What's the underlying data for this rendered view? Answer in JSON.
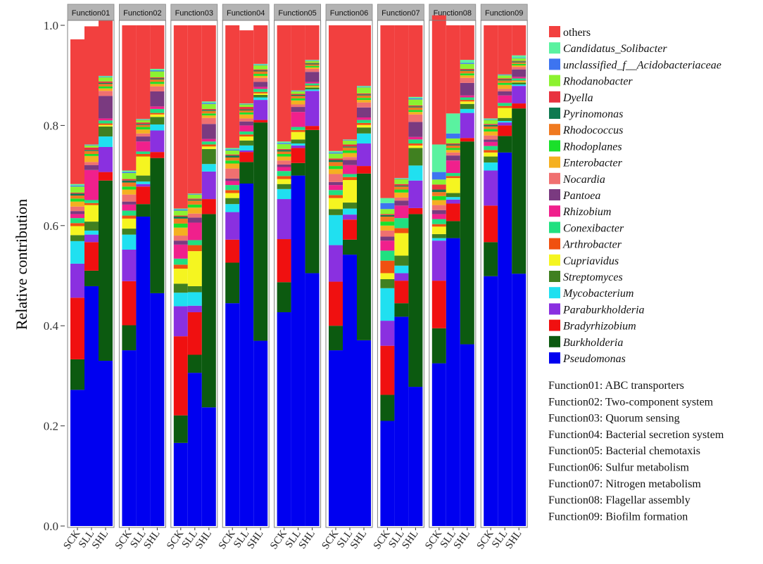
{
  "chart_data": {
    "type": "bar",
    "stacked": true,
    "ylabel": "Relative contribution",
    "ylim": [
      0,
      1.0
    ],
    "yticks": [
      "0.0",
      "0.2",
      "0.4",
      "0.6",
      "0.8",
      "1.0"
    ],
    "facets": [
      "Function01",
      "Function02",
      "Function03",
      "Function04",
      "Function05",
      "Function06",
      "Function07",
      "Function08",
      "Function09"
    ],
    "samples": [
      "SCK",
      "SLL",
      "SHL"
    ],
    "legend_title": "",
    "legend": [
      {
        "name": "others",
        "color": "#F2403F",
        "italic": false
      },
      {
        "name": "Candidatus_Solibacter",
        "color": "#5AF2A0",
        "italic": true
      },
      {
        "name": "unclassified_f__Acidobacteriaceae",
        "color": "#3D74F0",
        "italic": true
      },
      {
        "name": "Rhodanobacter",
        "color": "#8CF230",
        "italic": true
      },
      {
        "name": "Dyella",
        "color": "#E8323F",
        "italic": true
      },
      {
        "name": "Pyrinomonas",
        "color": "#0E7A50",
        "italic": true
      },
      {
        "name": "Rhodococcus",
        "color": "#F07A20",
        "italic": true
      },
      {
        "name": "Rhodoplanes",
        "color": "#1AE02A",
        "italic": true
      },
      {
        "name": "Enterobacter",
        "color": "#F5B020",
        "italic": true
      },
      {
        "name": "Nocardia",
        "color": "#F07070",
        "italic": true
      },
      {
        "name": "Pantoea",
        "color": "#7A3A80",
        "italic": true
      },
      {
        "name": "Rhizobium",
        "color": "#F0208C",
        "italic": true
      },
      {
        "name": "Conexibacter",
        "color": "#20E080",
        "italic": true
      },
      {
        "name": "Arthrobacter",
        "color": "#F05010",
        "italic": true
      },
      {
        "name": "Cupriavidus",
        "color": "#F5F520",
        "italic": true
      },
      {
        "name": "Streptomyces",
        "color": "#408020",
        "italic": true
      },
      {
        "name": "Mycobacterium",
        "color": "#20E0F0",
        "italic": true
      },
      {
        "name": "Paraburkholderia",
        "color": "#8A30E0",
        "italic": true
      },
      {
        "name": "Bradyrhizobium",
        "color": "#F01010",
        "italic": true
      },
      {
        "name": "Burkholderia",
        "color": "#0C5A10",
        "italic": true
      },
      {
        "name": "Pseudomonas",
        "color": "#0000F0",
        "italic": true
      }
    ],
    "stack_order_bottom_to_top": [
      "Pseudomonas",
      "Burkholderia",
      "Bradyrhizobium",
      "Paraburkholderia",
      "Mycobacterium",
      "Streptomyces",
      "Cupriavidus",
      "Arthrobacter",
      "Conexibacter",
      "Rhizobium",
      "Pantoea",
      "Nocardia",
      "Enterobacter",
      "Rhodoplanes",
      "Rhodococcus",
      "Pyrinomonas",
      "Dyella",
      "Rhodanobacter",
      "unclassified_f__Acidobacteriaceae",
      "Candidatus_Solibacter",
      "others"
    ],
    "bars": [
      {
        "facet": "Function01",
        "sample": "SCK",
        "values": [
          0.272,
          0.061,
          0.123,
          0.068,
          0.045,
          0.012,
          0.018,
          0.006,
          0.01,
          0.008,
          0.006,
          0.009,
          0.01,
          0.006,
          0.006,
          0.004,
          0.002,
          0.012,
          0.002,
          0.003,
          0.289
        ]
      },
      {
        "facet": "Function01",
        "sample": "SLL",
        "values": [
          0.479,
          0.031,
          0.057,
          0.015,
          0.008,
          0.018,
          0.033,
          0.004,
          0.006,
          0.06,
          0.01,
          0.006,
          0.012,
          0.004,
          0.006,
          0.002,
          0.005,
          0.004,
          0.001,
          0.001,
          0.236
        ]
      },
      {
        "facet": "Function01",
        "sample": "SHL",
        "values": [
          0.33,
          0.36,
          0.017,
          0.05,
          0.021,
          0.02,
          0.003,
          0.003,
          0.006,
          0.004,
          0.045,
          0.01,
          0.005,
          0.004,
          0.005,
          0.002,
          0.003,
          0.008,
          0.001,
          0.002,
          0.111
        ]
      },
      {
        "facet": "Function02",
        "sample": "SCK",
        "values": [
          0.351,
          0.05,
          0.088,
          0.063,
          0.03,
          0.012,
          0.02,
          0.006,
          0.01,
          0.012,
          0.006,
          0.014,
          0.01,
          0.006,
          0.008,
          0.004,
          0.003,
          0.012,
          0.002,
          0.003,
          0.29
        ]
      },
      {
        "facet": "Function02",
        "sample": "SLL",
        "values": [
          0.618,
          0.025,
          0.035,
          0.005,
          0.005,
          0.012,
          0.038,
          0.005,
          0.005,
          0.02,
          0.01,
          0.006,
          0.008,
          0.005,
          0.004,
          0.002,
          0.003,
          0.005,
          0.001,
          0.001,
          0.187
        ]
      },
      {
        "facet": "Function02",
        "sample": "SHL",
        "values": [
          0.465,
          0.27,
          0.012,
          0.043,
          0.012,
          0.015,
          0.005,
          0.003,
          0.008,
          0.005,
          0.03,
          0.01,
          0.005,
          0.004,
          0.005,
          0.002,
          0.002,
          0.012,
          0.002,
          0.003,
          0.087
        ]
      },
      {
        "facet": "Function03",
        "sample": "SCK",
        "values": [
          0.166,
          0.055,
          0.158,
          0.06,
          0.027,
          0.018,
          0.03,
          0.008,
          0.012,
          0.028,
          0.008,
          0.01,
          0.016,
          0.008,
          0.01,
          0.004,
          0.002,
          0.01,
          0.002,
          0.002,
          0.366
        ]
      },
      {
        "facet": "Function03",
        "sample": "SLL",
        "values": [
          0.306,
          0.036,
          0.085,
          0.013,
          0.027,
          0.012,
          0.07,
          0.012,
          0.01,
          0.035,
          0.01,
          0.008,
          0.012,
          0.006,
          0.008,
          0.002,
          0.002,
          0.008,
          0.001,
          0.001,
          0.336
        ]
      },
      {
        "facet": "Function03",
        "sample": "SHL",
        "values": [
          0.237,
          0.386,
          0.03,
          0.055,
          0.015,
          0.03,
          0.005,
          0.004,
          0.006,
          0.005,
          0.03,
          0.012,
          0.005,
          0.004,
          0.005,
          0.002,
          0.002,
          0.01,
          0.002,
          0.003,
          0.152
        ]
      },
      {
        "facet": "Function04",
        "sample": "SCK",
        "values": [
          0.445,
          0.081,
          0.046,
          0.055,
          0.016,
          0.012,
          0.01,
          0.006,
          0.01,
          0.008,
          0.005,
          0.02,
          0.01,
          0.006,
          0.006,
          0.004,
          0.002,
          0.008,
          0.002,
          0.003,
          0.245
        ]
      },
      {
        "facet": "Function04",
        "sample": "SLL",
        "values": [
          0.684,
          0.043,
          0.02,
          0.003,
          0.01,
          0.01,
          0.008,
          0.004,
          0.006,
          0.012,
          0.008,
          0.006,
          0.008,
          0.004,
          0.004,
          0.002,
          0.005,
          0.005,
          0.001,
          0.001,
          0.146
        ]
      },
      {
        "facet": "Function04",
        "sample": "SHL",
        "values": [
          0.37,
          0.436,
          0.005,
          0.04,
          0.005,
          0.005,
          0.003,
          0.003,
          0.006,
          0.004,
          0.01,
          0.008,
          0.004,
          0.004,
          0.005,
          0.002,
          0.002,
          0.008,
          0.001,
          0.002,
          0.077
        ]
      },
      {
        "facet": "Function05",
        "sample": "SCK",
        "values": [
          0.427,
          0.06,
          0.086,
          0.08,
          0.02,
          0.01,
          0.01,
          0.006,
          0.01,
          0.008,
          0.005,
          0.008,
          0.008,
          0.005,
          0.005,
          0.003,
          0.002,
          0.01,
          0.002,
          0.003,
          0.232
        ]
      },
      {
        "facet": "Function05",
        "sample": "SLL",
        "values": [
          0.7,
          0.025,
          0.03,
          0.005,
          0.004,
          0.008,
          0.015,
          0.004,
          0.006,
          0.03,
          0.01,
          0.005,
          0.008,
          0.004,
          0.005,
          0.002,
          0.002,
          0.005,
          0.001,
          0.001,
          0.13
        ]
      },
      {
        "facet": "Function05",
        "sample": "SHL",
        "values": [
          0.505,
          0.286,
          0.008,
          0.07,
          0.003,
          0.004,
          0.002,
          0.002,
          0.004,
          0.003,
          0.02,
          0.006,
          0.003,
          0.003,
          0.003,
          0.002,
          0.001,
          0.004,
          0.001,
          0.001,
          0.069
        ]
      },
      {
        "facet": "Function06",
        "sample": "SCK",
        "values": [
          0.351,
          0.049,
          0.088,
          0.073,
          0.06,
          0.012,
          0.022,
          0.006,
          0.01,
          0.01,
          0.006,
          0.016,
          0.01,
          0.006,
          0.008,
          0.004,
          0.003,
          0.01,
          0.002,
          0.003,
          0.251
        ]
      },
      {
        "facet": "Function06",
        "sample": "SLL",
        "values": [
          0.542,
          0.03,
          0.04,
          0.01,
          0.012,
          0.012,
          0.045,
          0.006,
          0.006,
          0.018,
          0.01,
          0.006,
          0.008,
          0.005,
          0.006,
          0.002,
          0.004,
          0.008,
          0.001,
          0.001,
          0.228
        ]
      },
      {
        "facet": "Function06",
        "sample": "SHL",
        "values": [
          0.371,
          0.333,
          0.015,
          0.045,
          0.02,
          0.012,
          0.005,
          0.004,
          0.006,
          0.005,
          0.02,
          0.01,
          0.005,
          0.004,
          0.005,
          0.002,
          0.002,
          0.012,
          0.001,
          0.002,
          0.121
        ]
      },
      {
        "facet": "Function07",
        "sample": "SCK",
        "values": [
          0.21,
          0.052,
          0.098,
          0.05,
          0.065,
          0.018,
          0.012,
          0.025,
          0.02,
          0.02,
          0.008,
          0.012,
          0.01,
          0.008,
          0.01,
          0.003,
          0.002,
          0.01,
          0.012,
          0.01,
          0.345
        ]
      },
      {
        "facet": "Function07",
        "sample": "SLL",
        "values": [
          0.418,
          0.027,
          0.045,
          0.015,
          0.015,
          0.02,
          0.045,
          0.01,
          0.02,
          0.025,
          0.01,
          0.006,
          0.01,
          0.006,
          0.006,
          0.002,
          0.003,
          0.01,
          0.001,
          0.001,
          0.305
        ]
      },
      {
        "facet": "Function07",
        "sample": "SHL",
        "values": [
          0.278,
          0.345,
          0.012,
          0.055,
          0.03,
          0.035,
          0.005,
          0.004,
          0.008,
          0.005,
          0.03,
          0.015,
          0.005,
          0.004,
          0.005,
          0.002,
          0.002,
          0.012,
          0.002,
          0.003,
          0.143
        ]
      },
      {
        "facet": "Function08",
        "sample": "SCK",
        "values": [
          0.325,
          0.07,
          0.095,
          0.08,
          0.005,
          0.008,
          0.015,
          0.005,
          0.01,
          0.01,
          0.008,
          0.01,
          0.01,
          0.008,
          0.008,
          0.005,
          0.01,
          0.01,
          0.015,
          0.055,
          0.258
        ]
      },
      {
        "facet": "Function08",
        "sample": "SLL",
        "values": [
          0.575,
          0.034,
          0.035,
          0.008,
          0.005,
          0.008,
          0.03,
          0.004,
          0.006,
          0.025,
          0.01,
          0.006,
          0.005,
          0.004,
          0.005,
          0.002,
          0.002,
          0.01,
          0.01,
          0.04,
          0.176
        ]
      },
      {
        "facet": "Function08",
        "sample": "SHL",
        "values": [
          0.363,
          0.405,
          0.007,
          0.05,
          0.008,
          0.01,
          0.005,
          0.003,
          0.005,
          0.004,
          0.025,
          0.01,
          0.005,
          0.004,
          0.005,
          0.002,
          0.002,
          0.01,
          0.002,
          0.006,
          0.069
        ]
      },
      {
        "facet": "Function09",
        "sample": "SCK",
        "values": [
          0.499,
          0.068,
          0.073,
          0.07,
          0.016,
          0.012,
          0.008,
          0.005,
          0.008,
          0.008,
          0.005,
          0.008,
          0.008,
          0.005,
          0.005,
          0.003,
          0.002,
          0.008,
          0.001,
          0.002,
          0.186
        ]
      },
      {
        "facet": "Function09",
        "sample": "SLL",
        "values": [
          0.746,
          0.033,
          0.021,
          0.006,
          0.003,
          0.006,
          0.02,
          0.004,
          0.006,
          0.015,
          0.008,
          0.005,
          0.008,
          0.004,
          0.005,
          0.002,
          0.002,
          0.006,
          0.001,
          0.001,
          0.098
        ]
      },
      {
        "facet": "Function09",
        "sample": "SHL",
        "values": [
          0.504,
          0.33,
          0.01,
          0.035,
          0.003,
          0.004,
          0.002,
          0.002,
          0.004,
          0.003,
          0.015,
          0.005,
          0.003,
          0.003,
          0.003,
          0.002,
          0.001,
          0.005,
          0.001,
          0.005,
          0.06
        ]
      }
    ],
    "function_descriptions": [
      "Function01: ABC transporters",
      "Function02: Two-component system",
      "Function03: Quorum sensing",
      "Function04: Bacterial secretion system",
      "Function05: Bacterial chemotaxis",
      "Function06: Sulfur metabolism",
      "Function07: Nitrogen metabolism",
      "Function08: Flagellar assembly",
      "Function09: Biofilm formation"
    ]
  },
  "colors": {
    "strip_fill": "#B3B3B3",
    "panel_border": "#7F7F7F"
  }
}
